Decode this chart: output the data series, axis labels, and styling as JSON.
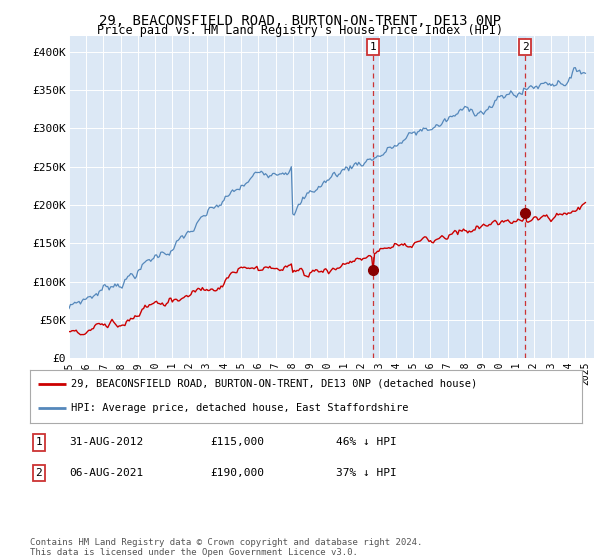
{
  "title": "29, BEACONSFIELD ROAD, BURTON-ON-TRENT, DE13 0NP",
  "subtitle": "Price paid vs. HM Land Registry's House Price Index (HPI)",
  "ylim": [
    0,
    420000
  ],
  "yticks": [
    0,
    50000,
    100000,
    150000,
    200000,
    250000,
    300000,
    350000,
    400000
  ],
  "ytick_labels": [
    "£0",
    "£50K",
    "£100K",
    "£150K",
    "£200K",
    "£250K",
    "£300K",
    "£350K",
    "£400K"
  ],
  "plot_bg": "#dce8f5",
  "red_color": "#cc0000",
  "blue_color": "#5588bb",
  "marker1_year": 2012.67,
  "marker2_year": 2021.58,
  "marker1_val": 115000,
  "marker2_val": 190000,
  "legend_line1": "29, BEACONSFIELD ROAD, BURTON-ON-TRENT, DE13 0NP (detached house)",
  "legend_line2": "HPI: Average price, detached house, East Staffordshire",
  "annot1_date": "31-AUG-2012",
  "annot1_price": "£115,000",
  "annot1_hpi": "46% ↓ HPI",
  "annot2_date": "06-AUG-2021",
  "annot2_price": "£190,000",
  "annot2_hpi": "37% ↓ HPI",
  "footer": "Contains HM Land Registry data © Crown copyright and database right 2024.\nThis data is licensed under the Open Government Licence v3.0.",
  "title_fontsize": 10,
  "subtitle_fontsize": 8.5
}
